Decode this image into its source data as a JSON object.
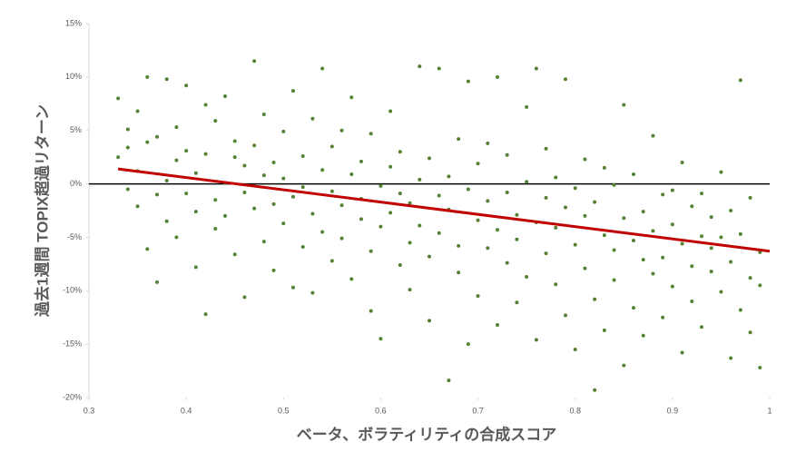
{
  "chart_data": {
    "type": "scatter",
    "x_label": "ベータ、ボラティリティの合成スコア",
    "y_label": "過去1週間 TOPIX超過リターン",
    "xlim": [
      0.3,
      1
    ],
    "xticks": [
      0.3,
      0.4,
      0.5,
      0.6,
      0.7,
      0.8,
      0.9,
      1
    ],
    "ylim": [
      -20,
      15
    ],
    "yticks": [
      {
        "value": -20,
        "label": "-20%"
      },
      {
        "value": -15,
        "label": "-15%"
      },
      {
        "value": -10,
        "label": "-10%"
      },
      {
        "value": -5,
        "label": "-5%"
      },
      {
        "value": 0,
        "label": "0%"
      },
      {
        "value": 5,
        "label": "5%"
      },
      {
        "value": 10,
        "label": "10%"
      },
      {
        "value": 15,
        "label": "15%"
      }
    ],
    "color": "#548235",
    "x": [
      0.33,
      0.33,
      0.34,
      0.34,
      0.34,
      0.35,
      0.35,
      0.35,
      0.36,
      0.36,
      0.36,
      0.37,
      0.37,
      0.37,
      0.38,
      0.38,
      0.38,
      0.39,
      0.39,
      0.39,
      0.4,
      0.4,
      0.4,
      0.41,
      0.41,
      0.41,
      0.42,
      0.42,
      0.42,
      0.43,
      0.43,
      0.43,
      0.44,
      0.44,
      0.44,
      0.45,
      0.45,
      0.45,
      0.46,
      0.46,
      0.46,
      0.47,
      0.47,
      0.47,
      0.48,
      0.48,
      0.48,
      0.49,
      0.49,
      0.49,
      0.5,
      0.5,
      0.5,
      0.51,
      0.51,
      0.51,
      0.52,
      0.52,
      0.52,
      0.53,
      0.53,
      0.53,
      0.54,
      0.54,
      0.54,
      0.55,
      0.55,
      0.55,
      0.56,
      0.56,
      0.56,
      0.57,
      0.57,
      0.57,
      0.58,
      0.58,
      0.58,
      0.59,
      0.59,
      0.59,
      0.6,
      0.6,
      0.6,
      0.61,
      0.61,
      0.61,
      0.62,
      0.62,
      0.62,
      0.63,
      0.63,
      0.63,
      0.64,
      0.64,
      0.64,
      0.65,
      0.65,
      0.65,
      0.66,
      0.66,
      0.66,
      0.67,
      0.67,
      0.67,
      0.68,
      0.68,
      0.68,
      0.69,
      0.69,
      0.69,
      0.7,
      0.7,
      0.7,
      0.71,
      0.71,
      0.71,
      0.72,
      0.72,
      0.72,
      0.73,
      0.73,
      0.73,
      0.74,
      0.74,
      0.74,
      0.75,
      0.75,
      0.75,
      0.76,
      0.76,
      0.76,
      0.77,
      0.77,
      0.77,
      0.78,
      0.78,
      0.78,
      0.79,
      0.79,
      0.79,
      0.8,
      0.8,
      0.8,
      0.81,
      0.81,
      0.81,
      0.82,
      0.82,
      0.82,
      0.83,
      0.83,
      0.83,
      0.84,
      0.84,
      0.84,
      0.85,
      0.85,
      0.85,
      0.86,
      0.86,
      0.86,
      0.87,
      0.87,
      0.87,
      0.88,
      0.88,
      0.88,
      0.89,
      0.89,
      0.89,
      0.9,
      0.9,
      0.9,
      0.91,
      0.91,
      0.91,
      0.92,
      0.92,
      0.92,
      0.93,
      0.93,
      0.93,
      0.94,
      0.94,
      0.94,
      0.95,
      0.95,
      0.95,
      0.96,
      0.96,
      0.96,
      0.97,
      0.97,
      0.97,
      0.98,
      0.98,
      0.98,
      0.99,
      0.99,
      0.99
    ],
    "values": [
      8.0,
      2.5,
      5.1,
      -0.5,
      3.4,
      6.8,
      -2.1,
      1.2,
      -6.1,
      10.0,
      3.9,
      -1.0,
      4.4,
      -9.2,
      9.8,
      0.3,
      -3.5,
      2.2,
      -5.0,
      5.3,
      -0.9,
      3.1,
      9.2,
      -2.6,
      1.0,
      -7.8,
      7.4,
      -12.2,
      2.8,
      -1.5,
      5.9,
      -4.2,
      8.2,
      0.1,
      -3.0,
      2.5,
      -6.6,
      4.0,
      -0.8,
      -10.6,
      1.7,
      11.5,
      -2.3,
      3.6,
      -5.4,
      0.8,
      6.5,
      -1.9,
      -8.1,
      2.0,
      4.9,
      -3.7,
      0.5,
      -9.7,
      8.7,
      -1.2,
      2.6,
      -5.9,
      -0.3,
      6.1,
      -2.8,
      -10.2,
      1.3,
      -4.5,
      10.8,
      -0.7,
      3.5,
      -7.2,
      -2.0,
      5.0,
      -5.1,
      0.9,
      -8.9,
      8.1,
      -3.3,
      2.1,
      -1.4,
      -6.3,
      4.7,
      -11.9,
      -0.2,
      -4.0,
      -14.5,
      1.6,
      -2.7,
      6.8,
      -7.6,
      -0.9,
      3.0,
      -5.5,
      -1.8,
      -9.9,
      11.0,
      0.4,
      -3.9,
      -6.8,
      2.4,
      -12.8,
      -1.1,
      10.8,
      -4.6,
      -18.4,
      0.7,
      -2.4,
      -8.3,
      4.2,
      -5.8,
      -0.5,
      9.6,
      -15.0,
      -3.4,
      1.9,
      -10.5,
      -6.0,
      -1.6,
      3.8,
      -13.2,
      -4.3,
      10.0,
      -0.8,
      -7.4,
      2.7,
      -2.9,
      -11.1,
      -5.2,
      0.2,
      7.2,
      -8.7,
      -3.6,
      10.8,
      -14.6,
      -1.3,
      -6.5,
      3.3,
      -9.4,
      -4.1,
      0.6,
      -12.3,
      -2.2,
      9.8,
      -5.7,
      -0.4,
      -15.5,
      -7.9,
      2.3,
      -3.0,
      -19.3,
      -10.8,
      -1.7,
      -4.8,
      1.5,
      -13.7,
      -6.2,
      -0.1,
      -9.0,
      -3.2,
      7.4,
      -17.0,
      -5.3,
      -11.6,
      0.9,
      -7.1,
      -2.6,
      -14.2,
      4.5,
      -8.4,
      -4.4,
      -1.0,
      -12.5,
      -6.9,
      -3.8,
      -9.6,
      -0.6,
      -15.8,
      -5.6,
      2.0,
      -7.7,
      -2.1,
      -11.0,
      -4.9,
      -0.9,
      -13.4,
      -8.2,
      -6.0,
      -3.1,
      -10.1,
      1.1,
      -5.0,
      -16.3,
      -7.3,
      -2.5,
      9.7,
      -11.8,
      -4.7,
      -8.8,
      -1.3,
      -13.9,
      -17.2,
      -6.4,
      -9.5
    ],
    "trendline": {
      "color": "#c00000",
      "x": [
        0.33,
        1
      ],
      "values": [
        1.4,
        -6.3
      ]
    },
    "zero_line_color": "#000000"
  }
}
